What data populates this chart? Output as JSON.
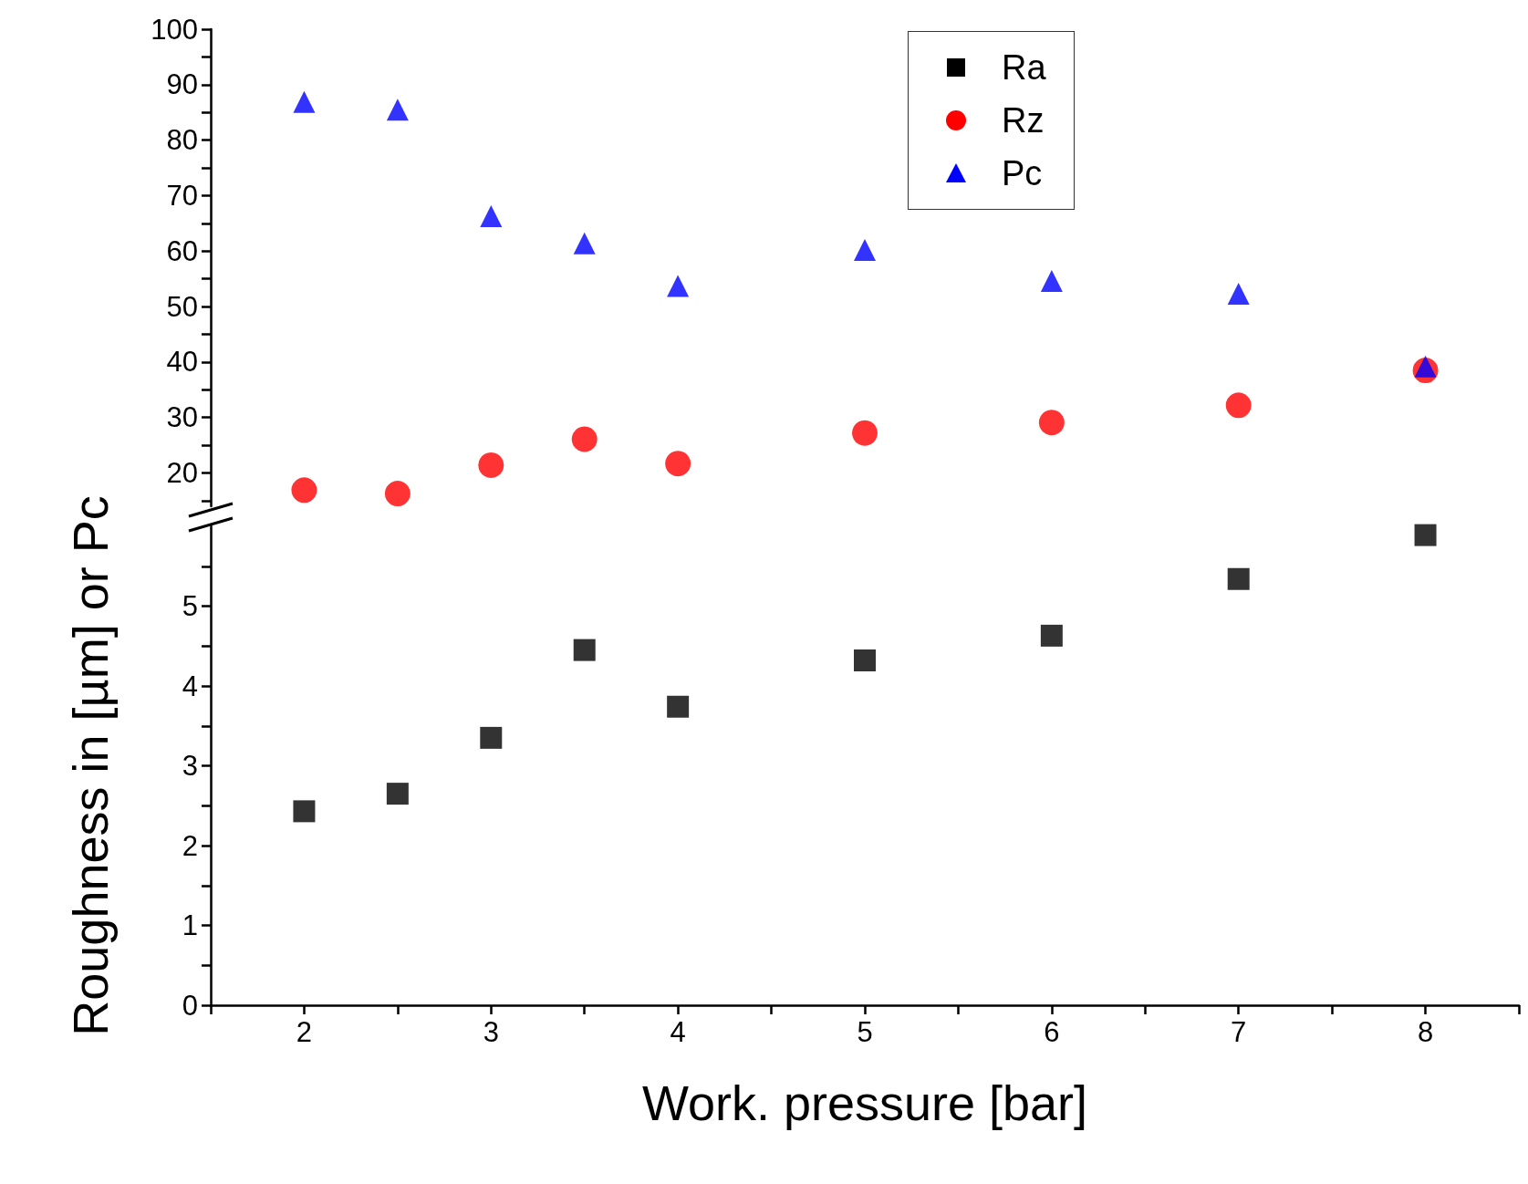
{
  "chart_data": [
    {
      "type": "scatter",
      "ylim": [
        14,
        100
      ],
      "yticks": [
        {
          "value": 15,
          "label": null
        },
        20,
        {
          "value": 25,
          "label": null
        },
        30,
        {
          "value": 35,
          "label": null
        },
        40,
        {
          "value": 45,
          "label": null
        },
        50,
        {
          "value": 55,
          "label": null
        },
        60,
        {
          "value": 65,
          "label": null
        },
        70,
        {
          "value": 75,
          "label": null
        },
        80,
        {
          "value": 85,
          "label": null
        },
        90,
        {
          "value": 95,
          "label": null
        },
        100
      ],
      "tick_labels": "y",
      "legend": "top right",
      "grid": false,
      "x": [
        2,
        2.5,
        3,
        3.5,
        4,
        5,
        6,
        7,
        8
      ],
      "series": [
        {
          "name": "Rz",
          "color": "#ff0000",
          "marker": "circle",
          "values": [
            16.9,
            16.3,
            21.4,
            26.1,
            21.7,
            27.2,
            29.1,
            32.2,
            38.5
          ]
        },
        {
          "name": "Pc",
          "color": "#0000ff",
          "marker": "triangle",
          "values": [
            86.9,
            85.5,
            66.3,
            61.4,
            53.7,
            60.2,
            54.6,
            52.3,
            39.2
          ]
        }
      ]
    },
    {
      "type": "scatter",
      "xlabel": "Work. pressure [bar]",
      "ylabel": "Roughness in [µm] or Pc",
      "xlim": [
        1.5,
        8.5
      ],
      "xticks": [
        {
          "value": 1.5,
          "label": null
        },
        2,
        {
          "value": 2.5,
          "label": null
        },
        3,
        {
          "value": 3.5,
          "label": null
        },
        4,
        {
          "value": 4.5,
          "label": null
        },
        5,
        {
          "value": 5.5,
          "label": null
        },
        6,
        {
          "value": 6.5,
          "label": null
        },
        7,
        {
          "value": 7.5,
          "label": null
        },
        8,
        {
          "value": 8.5,
          "label": null
        }
      ],
      "ylim": [
        0,
        6
      ],
      "yticks": [
        0,
        {
          "value": 0.5,
          "label": null
        },
        1,
        {
          "value": 1.5,
          "label": null
        },
        2,
        {
          "value": 2.5,
          "label": null
        },
        3,
        {
          "value": 3.5,
          "label": null
        },
        4,
        {
          "value": 4.5,
          "label": null
        },
        5,
        {
          "value": 5.5,
          "label": null
        }
      ],
      "grid": false,
      "x": [
        2,
        2.5,
        3,
        3.5,
        4,
        5,
        6,
        7,
        8
      ],
      "series": [
        {
          "name": "Ra",
          "color": "#000000",
          "marker": "square",
          "values": [
            2.43,
            2.65,
            3.35,
            4.45,
            3.74,
            4.32,
            4.63,
            5.34,
            5.89
          ]
        }
      ]
    }
  ]
}
